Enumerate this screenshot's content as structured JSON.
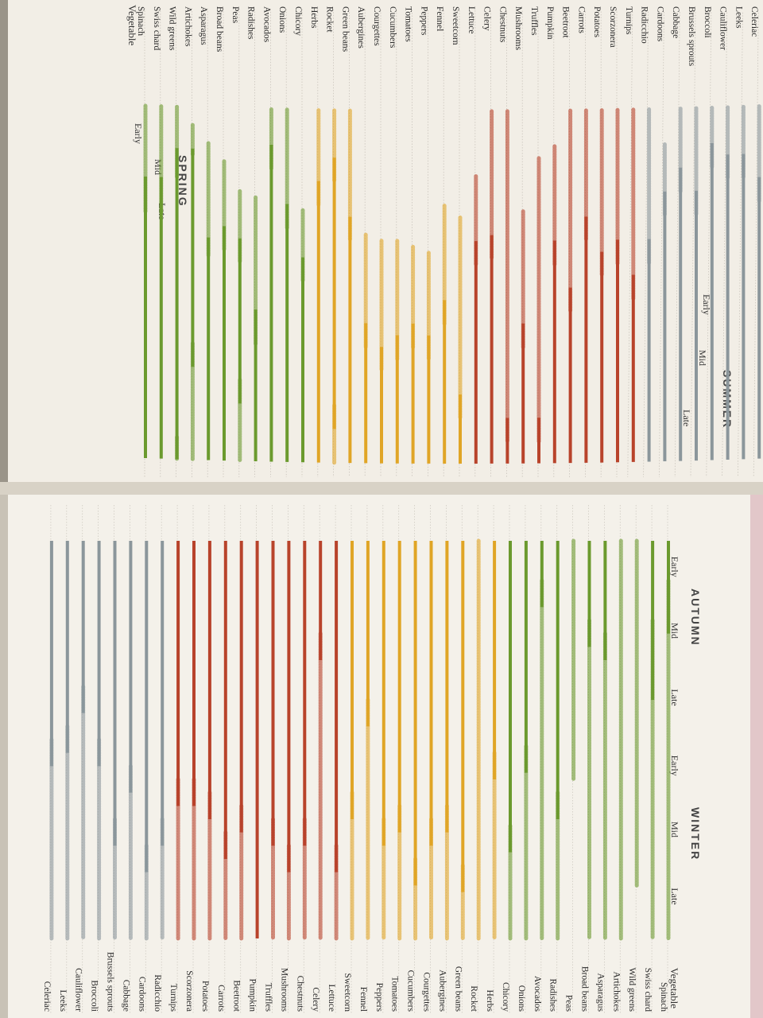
{
  "chart_data": {
    "type": "bar",
    "title": "",
    "header_label": "Vegetable",
    "seasons": [
      "SPRING",
      "SUMMER",
      "AUTUMN",
      "WINTER"
    ],
    "period_labels": [
      "Early",
      "Mid",
      "Late"
    ],
    "x_range": [
      0,
      12
    ],
    "grid": false,
    "legend": "none",
    "category_colors": {
      "green": "#6b9a2e",
      "yellow": "#e0a526",
      "red": "#b8432b",
      "grey": "#8b969b"
    },
    "bar_styles": [
      "solid",
      "dotted"
    ],
    "vegetables": [
      {
        "name": "Spinach",
        "category": "green",
        "bars": [
          [
            0.0,
            1.8,
            "dotted"
          ],
          [
            1.2,
            7.4,
            "solid"
          ],
          [
            6.6,
            12.0,
            "dotted"
          ]
        ]
      },
      {
        "name": "Swiss chard",
        "category": "green",
        "bars": [
          [
            0.0,
            1.8,
            "dotted"
          ],
          [
            1.2,
            8.4,
            "solid"
          ],
          [
            7.2,
            12.0,
            "dotted"
          ]
        ]
      },
      {
        "name": "Wild greens",
        "category": "green",
        "bars": [
          [
            0.0,
            1.2,
            "dotted"
          ],
          [
            0.7,
            6.0,
            "solid"
          ],
          [
            5.6,
            11.2,
            "dotted"
          ]
        ]
      },
      {
        "name": "Artichokes",
        "category": "green",
        "bars": [
          [
            0.3,
            0.8,
            "dotted"
          ],
          [
            0.7,
            4.4,
            "solid"
          ],
          [
            4.0,
            12.0,
            "dotted"
          ]
        ]
      },
      {
        "name": "Asparagus",
        "category": "green",
        "bars": [
          [
            0.6,
            2.5,
            "dotted"
          ],
          [
            2.2,
            7.8,
            "solid"
          ],
          [
            7.4,
            12.0,
            "dotted"
          ]
        ]
      },
      {
        "name": "Broad beans",
        "category": "green",
        "bars": [
          [
            0.9,
            2.4,
            "dotted"
          ],
          [
            2.0,
            7.6,
            "solid"
          ],
          [
            7.2,
            12.0,
            "dotted"
          ]
        ]
      },
      {
        "name": "Peas",
        "category": "green",
        "bars": [
          [
            1.4,
            2.6,
            "dotted"
          ],
          [
            2.2,
            5.0,
            "solid"
          ],
          [
            4.6,
            9.6,
            "dotted"
          ]
        ]
      },
      {
        "name": "Radishes",
        "category": "green",
        "bars": [
          [
            1.5,
            4.0,
            "dotted"
          ],
          [
            3.4,
            10.2,
            "solid"
          ],
          [
            9.8,
            12.0,
            "dotted"
          ]
        ]
      },
      {
        "name": "Avocados",
        "category": "green",
        "bars": [
          [
            0.0,
            1.0,
            "dotted"
          ],
          [
            0.6,
            7.0,
            "solid"
          ],
          [
            6.6,
            12.0,
            "dotted"
          ]
        ]
      },
      {
        "name": "Onions",
        "category": "green",
        "bars": [
          [
            0.0,
            2.0,
            "dotted"
          ],
          [
            1.6,
            9.5,
            "solid"
          ],
          [
            9.1,
            12.0,
            "dotted"
          ]
        ]
      },
      {
        "name": "Chicory",
        "category": "green",
        "bars": [
          [
            1.7,
            2.9,
            "dotted"
          ],
          [
            2.5,
            10.7,
            "solid"
          ],
          [
            10.3,
            12.0,
            "dotted"
          ]
        ]
      },
      {
        "name": "Herbs",
        "category": "yellow",
        "bars": [
          [
            0.0,
            1.6,
            "dotted"
          ],
          [
            1.2,
            9.6,
            "solid"
          ],
          [
            9.2,
            12.0,
            "dotted"
          ]
        ]
      },
      {
        "name": "Rocket",
        "category": "yellow",
        "bars": [
          [
            0.0,
            1.2,
            "dotted"
          ],
          [
            0.8,
            5.4,
            "solid"
          ],
          [
            5.0,
            12.0,
            "dotted"
          ]
        ]
      },
      {
        "name": "Green beans",
        "category": "yellow",
        "bars": [
          [
            0.0,
            2.2,
            "dotted"
          ],
          [
            1.8,
            11.3,
            "solid"
          ],
          [
            10.9,
            12.0,
            "dotted"
          ]
        ]
      },
      {
        "name": "Aubergines",
        "category": "yellow",
        "bars": [
          [
            2.1,
            4.0,
            "dotted"
          ],
          [
            3.6,
            10.4,
            "solid"
          ],
          [
            10.0,
            12.0,
            "dotted"
          ]
        ]
      },
      {
        "name": "Courgettes",
        "category": "yellow",
        "bars": [
          [
            2.2,
            4.4,
            "dotted"
          ],
          [
            4.0,
            10.6,
            "solid"
          ],
          [
            10.2,
            12.0,
            "dotted"
          ]
        ]
      },
      {
        "name": "Cucumbers",
        "category": "yellow",
        "bars": [
          [
            2.2,
            4.2,
            "dotted"
          ],
          [
            3.8,
            11.2,
            "solid"
          ],
          [
            10.8,
            12.0,
            "dotted"
          ]
        ]
      },
      {
        "name": "Tomatoes",
        "category": "yellow",
        "bars": [
          [
            2.3,
            4.0,
            "dotted"
          ],
          [
            3.6,
            10.4,
            "solid"
          ],
          [
            10.0,
            12.0,
            "dotted"
          ]
        ]
      },
      {
        "name": "Peppers",
        "category": "yellow",
        "bars": [
          [
            2.4,
            4.2,
            "dotted"
          ],
          [
            3.8,
            10.6,
            "solid"
          ],
          [
            10.2,
            12.0,
            "dotted"
          ]
        ]
      },
      {
        "name": "Fennel",
        "category": "yellow",
        "bars": [
          [
            1.6,
            3.6,
            "dotted"
          ],
          [
            3.2,
            8.8,
            "solid"
          ],
          [
            8.4,
            12.0,
            "dotted"
          ]
        ]
      },
      {
        "name": "Sweetcorn",
        "category": "yellow",
        "bars": [
          [
            1.8,
            5.2,
            "dotted"
          ],
          [
            4.8,
            10.2,
            "solid"
          ],
          [
            9.8,
            12.0,
            "dotted"
          ]
        ]
      },
      {
        "name": "Lettuce",
        "category": "red",
        "bars": [
          [
            1.1,
            2.6,
            "dotted"
          ],
          [
            2.2,
            11.0,
            "solid"
          ],
          [
            10.6,
            12.0,
            "dotted"
          ]
        ]
      },
      {
        "name": "Celery",
        "category": "red",
        "bars": [
          [
            0.0,
            2.5,
            "dotted"
          ],
          [
            2.1,
            7.8,
            "solid"
          ],
          [
            7.4,
            12.0,
            "dotted"
          ]
        ]
      },
      {
        "name": "Chestnuts",
        "category": "red",
        "bars": [
          [
            0.0,
            5.6,
            "dotted"
          ],
          [
            5.2,
            10.6,
            "solid"
          ],
          [
            10.2,
            12.0,
            "dotted"
          ]
        ]
      },
      {
        "name": "Mushrooms",
        "category": "red",
        "bars": [
          [
            1.7,
            4.0,
            "dotted"
          ],
          [
            3.6,
            11.0,
            "solid"
          ],
          [
            10.6,
            12.0,
            "dotted"
          ]
        ]
      },
      {
        "name": "Truffles",
        "category": "red",
        "bars": [
          [
            0.8,
            5.6,
            "dotted"
          ],
          [
            5.2,
            10.6,
            "solid"
          ],
          [
            10.2,
            12.0,
            "dotted"
          ]
        ]
      },
      {
        "name": "Pumpkin",
        "category": "red",
        "bars": [
          [
            0.6,
            2.6,
            "dotted"
          ],
          [
            2.2,
            12.0,
            "solid"
          ]
        ]
      },
      {
        "name": "Beetroot",
        "category": "red",
        "bars": [
          [
            0.0,
            3.4,
            "dotted"
          ],
          [
            3.0,
            10.4,
            "solid"
          ],
          [
            10.0,
            12.0,
            "dotted"
          ]
        ]
      },
      {
        "name": "Carrots",
        "category": "red",
        "bars": [
          [
            0.0,
            2.2,
            "dotted"
          ],
          [
            1.8,
            10.8,
            "solid"
          ],
          [
            10.4,
            12.0,
            "dotted"
          ]
        ]
      },
      {
        "name": "Potatoes",
        "category": "red",
        "bars": [
          [
            0.0,
            2.8,
            "dotted"
          ],
          [
            2.4,
            10.2,
            "solid"
          ],
          [
            9.8,
            12.0,
            "dotted"
          ]
        ]
      },
      {
        "name": "Scorzonera",
        "category": "red",
        "bars": [
          [
            0.0,
            2.6,
            "dotted"
          ],
          [
            2.2,
            10.0,
            "solid"
          ],
          [
            9.6,
            12.0,
            "dotted"
          ]
        ]
      },
      {
        "name": "Turnips",
        "category": "red",
        "bars": [
          [
            0.0,
            3.2,
            "dotted"
          ],
          [
            2.8,
            10.0,
            "solid"
          ],
          [
            9.6,
            12.0,
            "dotted"
          ]
        ]
      },
      {
        "name": "Radicchio",
        "category": "grey",
        "bars": [
          [
            0.0,
            2.6,
            "dotted"
          ],
          [
            2.2,
            10.6,
            "solid"
          ],
          [
            10.2,
            12.0,
            "dotted"
          ]
        ]
      },
      {
        "name": "Cardoons",
        "category": "grey",
        "bars": [
          [
            0.6,
            1.8,
            "dotted"
          ],
          [
            1.4,
            11.0,
            "solid"
          ],
          [
            10.6,
            12.0,
            "dotted"
          ]
        ]
      },
      {
        "name": "Cabbage",
        "category": "grey",
        "bars": [
          [
            0.0,
            1.4,
            "dotted"
          ],
          [
            1.0,
            9.8,
            "solid"
          ],
          [
            9.4,
            12.0,
            "dotted"
          ]
        ]
      },
      {
        "name": "Brussels sprouts",
        "category": "grey",
        "bars": [
          [
            0.0,
            1.8,
            "dotted"
          ],
          [
            1.4,
            10.6,
            "solid"
          ],
          [
            10.2,
            12.0,
            "dotted"
          ]
        ]
      },
      {
        "name": "Broccoli",
        "category": "grey",
        "bars": [
          [
            0.0,
            1.0,
            "dotted"
          ],
          [
            0.6,
            9.4,
            "solid"
          ],
          [
            9.0,
            12.0,
            "dotted"
          ]
        ]
      },
      {
        "name": "Cauliflower",
        "category": "grey",
        "bars": [
          [
            0.0,
            1.2,
            "dotted"
          ],
          [
            0.8,
            8.6,
            "solid"
          ],
          [
            8.2,
            12.0,
            "dotted"
          ]
        ]
      },
      {
        "name": "Leeks",
        "category": "grey",
        "bars": [
          [
            0.0,
            1.2,
            "dotted"
          ],
          [
            0.8,
            9.2,
            "solid"
          ],
          [
            8.8,
            12.0,
            "dotted"
          ]
        ]
      },
      {
        "name": "Celeriac",
        "category": "grey",
        "bars": [
          [
            0.0,
            1.6,
            "dotted"
          ],
          [
            1.2,
            9.4,
            "solid"
          ],
          [
            9.0,
            12.0,
            "dotted"
          ]
        ]
      }
    ]
  }
}
